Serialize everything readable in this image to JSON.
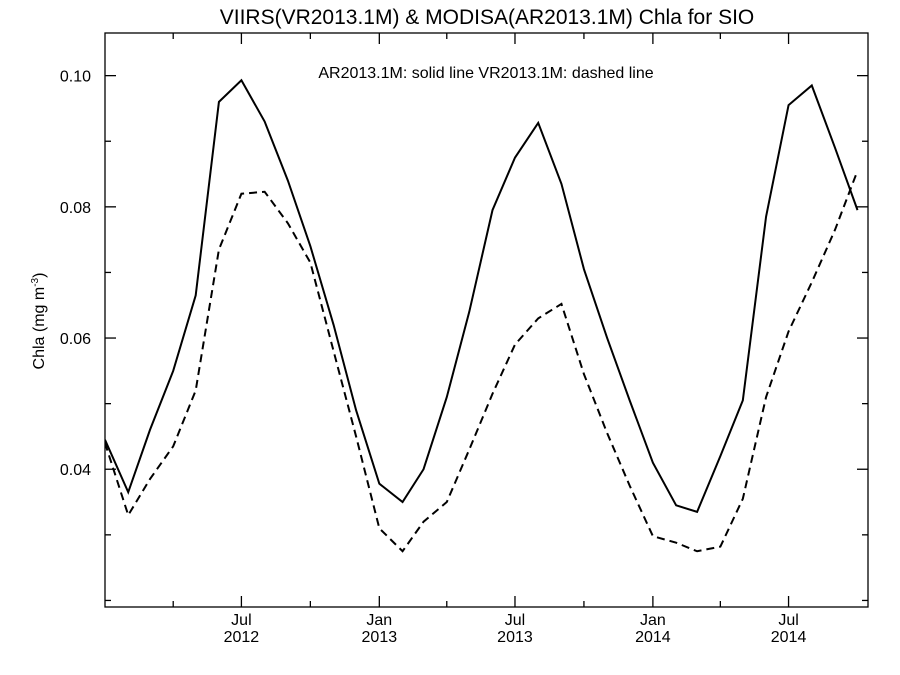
{
  "chart_data": {
    "type": "line",
    "title": "VIIRS(VR2013.1M) & MODISA(AR2013.1M)  Chla for SIO",
    "annotation": "AR2013.1M: solid line   VR2013.1M: dashed line",
    "ylabel": {
      "main": "Chla (mg m",
      "sup": "-3",
      "close": ")"
    },
    "xlabel": "",
    "xlim": [
      "2012-01-01",
      "2014-10-15"
    ],
    "ylim": [
      0.019,
      0.1065
    ],
    "y_ticks": [
      {
        "value": 0.04,
        "label": "0.04"
      },
      {
        "value": 0.06,
        "label": "0.06"
      },
      {
        "value": 0.08,
        "label": "0.08"
      },
      {
        "value": 0.1,
        "label": "0.10"
      }
    ],
    "y_minor_ticks": [
      0.02,
      0.03,
      0.05,
      0.07,
      0.09
    ],
    "x_ticks": [
      {
        "date": "2012-07-01",
        "label1": "Jul",
        "label2": "2012"
      },
      {
        "date": "2013-01-01",
        "label1": "Jan",
        "label2": "2013"
      },
      {
        "date": "2013-07-01",
        "label1": "Jul",
        "label2": "2013"
      },
      {
        "date": "2014-01-01",
        "label1": "Jan",
        "label2": "2014"
      },
      {
        "date": "2014-07-01",
        "label1": "Jul",
        "label2": "2014"
      }
    ],
    "x_minor_ticks": [
      "2012-04-01",
      "2012-10-01",
      "2013-04-01",
      "2013-10-01",
      "2014-04-01"
    ],
    "x": [
      "2012-01-01",
      "2012-02-01",
      "2012-03-01",
      "2012-04-01",
      "2012-05-01",
      "2012-06-01",
      "2012-07-01",
      "2012-08-01",
      "2012-09-01",
      "2012-10-01",
      "2012-11-01",
      "2012-12-01",
      "2013-01-01",
      "2013-02-01",
      "2013-03-01",
      "2013-04-01",
      "2013-05-01",
      "2013-06-01",
      "2013-07-01",
      "2013-08-01",
      "2013-09-01",
      "2013-10-01",
      "2013-11-01",
      "2013-12-01",
      "2014-01-01",
      "2014-02-01",
      "2014-03-01",
      "2014-04-01",
      "2014-05-01",
      "2014-06-01",
      "2014-07-01",
      "2014-08-01",
      "2014-09-01",
      "2014-10-01"
    ],
    "series": [
      {
        "name": "AR2013.1M",
        "style": "solid",
        "values": [
          0.0445,
          0.0365,
          0.046,
          0.055,
          0.0665,
          0.096,
          0.0993,
          0.093,
          0.084,
          0.074,
          0.062,
          0.049,
          0.0378,
          0.035,
          0.04,
          0.051,
          0.064,
          0.0795,
          0.0875,
          0.0928,
          0.0835,
          0.0705,
          0.06,
          0.0505,
          0.041,
          0.0345,
          0.0335,
          0.042,
          0.0505,
          0.0785,
          0.0955,
          0.0985,
          0.089,
          0.0795
        ]
      },
      {
        "name": "VR2013.1M",
        "style": "dashed",
        "values": [
          0.044,
          0.033,
          0.0385,
          0.0435,
          0.052,
          0.0735,
          0.082,
          0.0823,
          0.0775,
          0.0715,
          0.058,
          0.045,
          0.031,
          0.0275,
          0.032,
          0.035,
          0.043,
          0.0515,
          0.059,
          0.063,
          0.0652,
          0.0545,
          0.0455,
          0.0375,
          0.0298,
          0.0288,
          0.0275,
          0.0282,
          0.0355,
          0.051,
          0.061,
          0.0685,
          0.0765,
          0.0855
        ]
      }
    ],
    "grid": false,
    "colors": {
      "line": "#000000",
      "background": "#ffffff"
    }
  }
}
